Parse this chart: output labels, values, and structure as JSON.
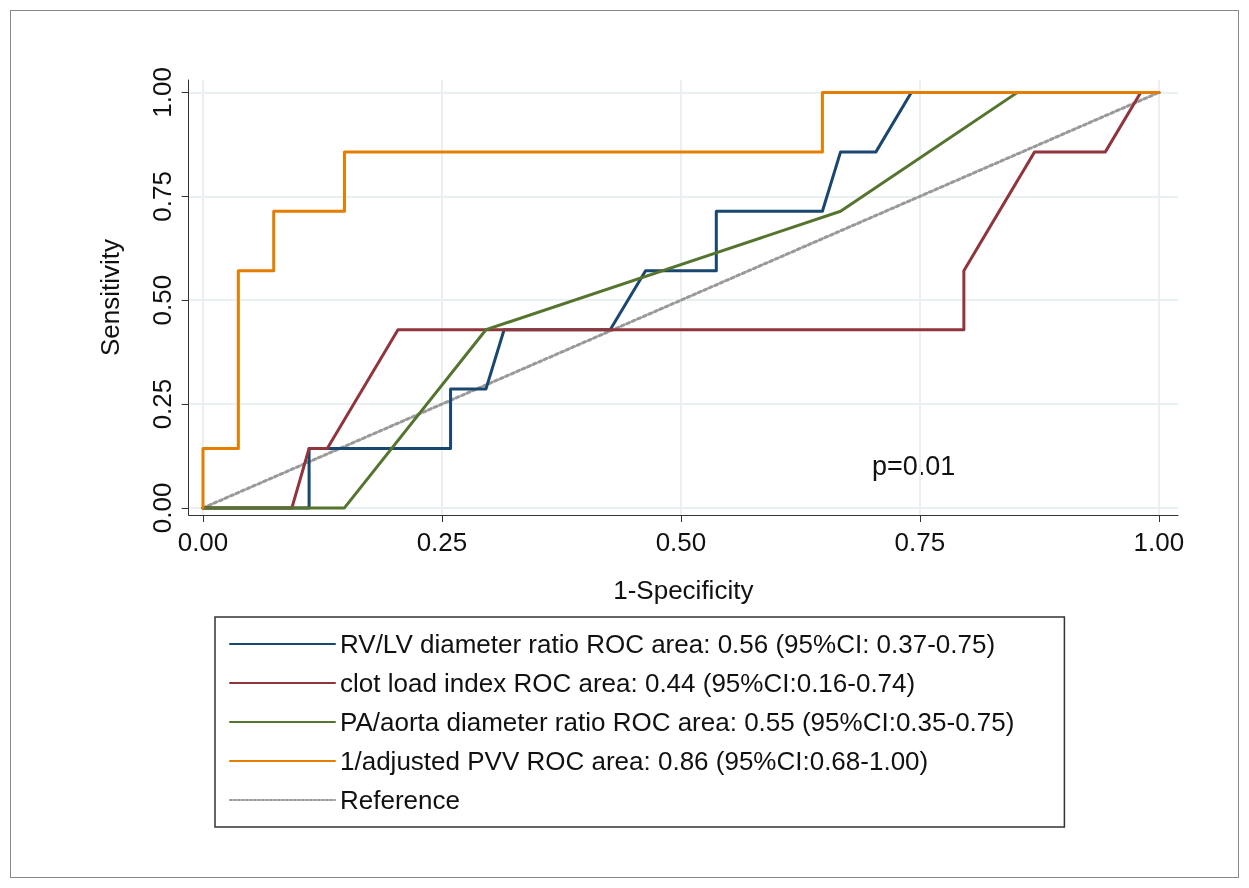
{
  "chart_data": {
    "type": "line",
    "xlabel": "1-Specificity",
    "ylabel": "Sensitivity",
    "xlim": [
      -0.015,
      1.02
    ],
    "ylim": [
      -0.017,
      1.03
    ],
    "xticks": [
      {
        "value": 0,
        "label": "0.00"
      },
      {
        "value": 0.25,
        "label": "0.25"
      },
      {
        "value": 0.5,
        "label": "0.50"
      },
      {
        "value": 0.75,
        "label": "0.75"
      },
      {
        "value": 1,
        "label": "1.00"
      }
    ],
    "yticks": [
      {
        "value": 0,
        "label": "0.00"
      },
      {
        "value": 0.25,
        "label": "0.25"
      },
      {
        "value": 0.5,
        "label": "0.50"
      },
      {
        "value": 0.75,
        "label": "0.75"
      },
      {
        "value": 1,
        "label": "1.00"
      }
    ],
    "grid": true,
    "legend": "bottom",
    "marker": "none",
    "line_style": "solid",
    "annotations": [
      "p=0.01"
    ],
    "series": [
      {
        "name": "RV/LV diameter ratio ROC area: 0.56 (95%CI: 0.37-0.75)",
        "color": "#1a476f",
        "x": [
          0,
          0.111,
          0.111,
          0.259,
          0.259,
          0.296,
          0.315,
          0.426,
          0.463,
          0.537,
          0.537,
          0.648,
          0.667,
          0.704,
          0.741,
          1
        ],
        "values": [
          0,
          0,
          0.143,
          0.143,
          0.286,
          0.286,
          0.429,
          0.429,
          0.571,
          0.571,
          0.714,
          0.714,
          0.857,
          0.857,
          1,
          1
        ]
      },
      {
        "name": "clot load index ROC area: 0.44 (95%CI:0.16-0.74)",
        "color": "#90353b",
        "x": [
          0,
          0.093,
          0.111,
          0.13,
          0.204,
          0.796,
          0.796,
          0.87,
          0.944,
          0.981,
          1
        ],
        "values": [
          0,
          0,
          0.143,
          0.143,
          0.429,
          0.429,
          0.571,
          0.857,
          0.857,
          1,
          1
        ]
      },
      {
        "name": "PA/aorta diameter ratio ROC area: 0.55 (95%CI:0.35-0.75)",
        "color": "#55752f",
        "x": [
          0,
          0.148,
          0.296,
          0.667,
          0.852,
          1
        ],
        "values": [
          0,
          0,
          0.429,
          0.714,
          1,
          1
        ]
      },
      {
        "name": "1/adjusted PVV ROC area: 0.86 (95%CI:0.68-1.00)",
        "color": "#e37e00",
        "x": [
          0,
          0,
          0.037,
          0.037,
          0.074,
          0.074,
          0.148,
          0.148,
          0.648,
          0.648,
          1
        ],
        "values": [
          0,
          0.143,
          0.143,
          0.571,
          0.571,
          0.714,
          0.714,
          0.857,
          0.857,
          1,
          1
        ]
      },
      {
        "name": "Reference",
        "color": "#999999",
        "line_style": "dotted",
        "x": [
          0,
          1
        ],
        "values": [
          0,
          1
        ]
      }
    ]
  }
}
